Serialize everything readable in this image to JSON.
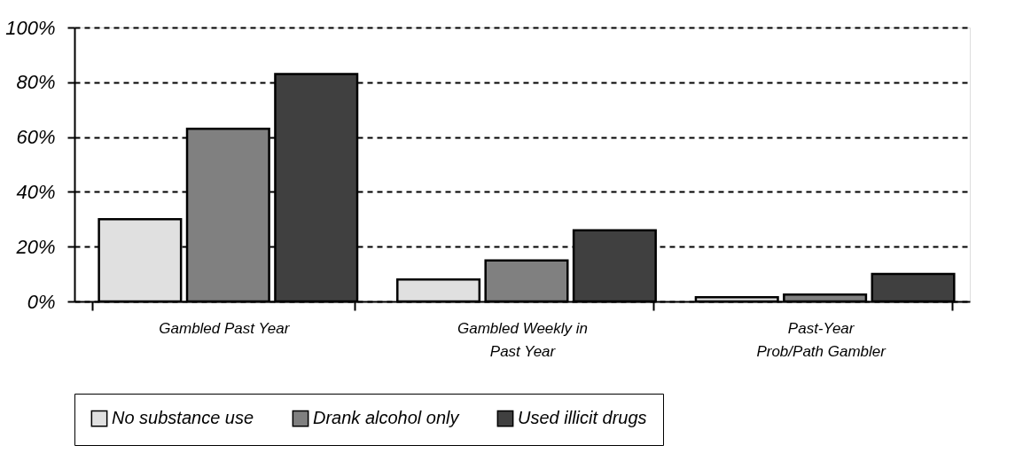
{
  "chart_data": {
    "type": "bar",
    "categories": [
      "Gambled Past Year",
      "Gambled Weekly in Past Year",
      "Past-Year Prob/Path Gambler"
    ],
    "series": [
      {
        "name": "No substance use",
        "color": "#e0e0e0",
        "values": [
          30,
          8,
          1.5
        ]
      },
      {
        "name": "Drank alcohol only",
        "color": "#808080",
        "values": [
          63,
          15,
          2.5
        ]
      },
      {
        "name": "Used illicit drugs",
        "color": "#404040",
        "values": [
          83,
          26,
          10
        ]
      }
    ],
    "ylim": [
      0,
      100
    ],
    "yticks": [
      {
        "value": 0,
        "label": "0%"
      },
      {
        "value": 20,
        "label": "20%"
      },
      {
        "value": 40,
        "label": "40%"
      },
      {
        "value": 60,
        "label": "60%"
      },
      {
        "value": 80,
        "label": "80%"
      },
      {
        "value": 100,
        "label": "100%"
      }
    ],
    "grid": "y",
    "legend": "bottom"
  }
}
